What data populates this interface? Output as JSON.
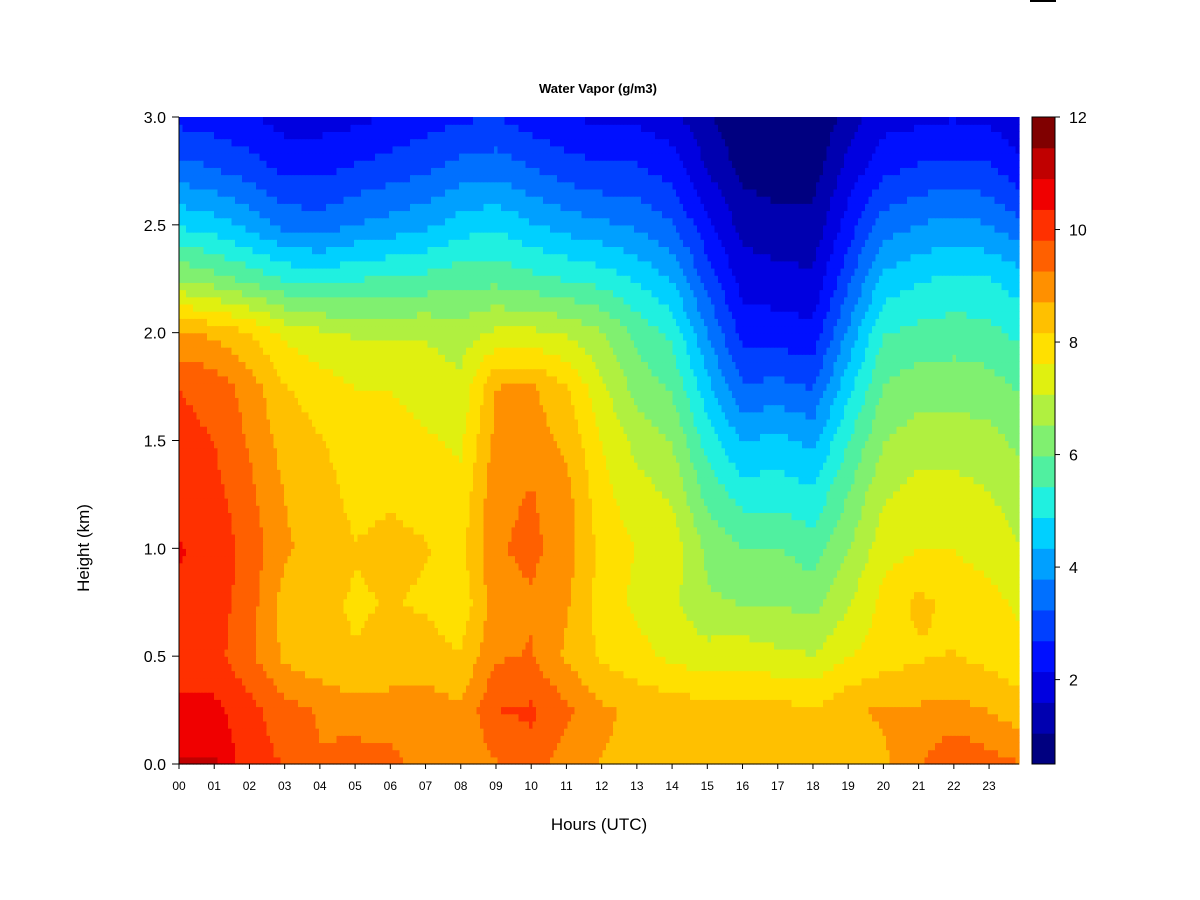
{
  "chart_data": {
    "type": "heatmap",
    "title": "Water Vapor (g/m3)",
    "xlabel": "Hours (UTC)",
    "ylabel": "Height (km)",
    "x_tick_labels": [
      "00",
      "01",
      "02",
      "03",
      "04",
      "05",
      "06",
      "07",
      "08",
      "09",
      "10",
      "11",
      "12",
      "13",
      "14",
      "15",
      "16",
      "17",
      "18",
      "19",
      "20",
      "21",
      "22",
      "23"
    ],
    "xlim": [
      0,
      23.85
    ],
    "y_ticks": [
      0.0,
      0.5,
      1.0,
      1.5,
      2.0,
      2.5,
      3.0
    ],
    "y_tick_labels": [
      "0.0",
      "0.5",
      "1.0",
      "1.5",
      "2.0",
      "2.5",
      "3.0"
    ],
    "ylim": [
      0,
      3
    ],
    "colorbar": {
      "min": 0.5,
      "max": 12,
      "ticks": [
        2,
        4,
        6,
        8,
        10,
        12
      ],
      "tick_labels": [
        "2",
        "4",
        "6",
        "8",
        "10",
        "12"
      ],
      "colors": [
        "#000080",
        "#0000B0",
        "#0000E0",
        "#0010FF",
        "#0040FF",
        "#0070FF",
        "#00A0FF",
        "#00D0FF",
        "#20F0E0",
        "#50F0A0",
        "#80F070",
        "#B0F040",
        "#E0F010",
        "#FFE000",
        "#FFC000",
        "#FF9000",
        "#FF6000",
        "#FF3000",
        "#F00000",
        "#C00000",
        "#800000"
      ]
    },
    "hours": [
      0,
      1,
      2,
      3,
      4,
      5,
      6,
      7,
      8,
      9,
      10,
      11,
      12,
      13,
      14,
      15,
      16,
      17,
      18,
      19,
      20,
      21,
      22,
      23,
      23.85
    ],
    "heights": [
      0.0,
      0.25,
      0.5,
      0.75,
      1.0,
      1.25,
      1.5,
      1.75,
      2.0,
      2.25,
      2.5,
      2.75,
      3.0
    ],
    "values": [
      [
        11.0,
        11.0,
        10.0,
        9.8,
        9.3,
        9.6,
        9.4,
        9.1,
        8.8,
        9.2,
        9.6,
        8.9,
        8.7,
        8.6,
        8.5,
        8.3,
        8.4,
        8.4,
        8.2,
        8.4,
        8.6,
        9.2,
        9.8,
        9.5,
        9.3
      ],
      [
        10.5,
        10.5,
        10.0,
        9.5,
        9.2,
        8.9,
        9.0,
        9.0,
        8.8,
        9.8,
        9.9,
        9.4,
        8.8,
        8.6,
        8.5,
        8.4,
        8.3,
        8.4,
        8.2,
        8.6,
        8.8,
        8.8,
        8.9,
        8.7,
        8.4
      ],
      [
        10.0,
        10.0,
        9.4,
        8.6,
        8.3,
        8.2,
        8.3,
        8.4,
        8.2,
        9.2,
        9.3,
        8.6,
        8.1,
        7.8,
        7.5,
        7.3,
        7.4,
        7.2,
        7.1,
        7.6,
        7.9,
        8.1,
        8.2,
        8.0,
        7.8
      ],
      [
        10.3,
        10.1,
        9.5,
        8.5,
        8.3,
        8.1,
        8.2,
        8.1,
        7.8,
        9.0,
        9.2,
        8.8,
        7.9,
        7.5,
        7.2,
        6.6,
        6.5,
        6.5,
        6.3,
        7.0,
        7.8,
        8.3,
        8.0,
        7.8,
        7.5
      ],
      [
        10.4,
        10.2,
        9.6,
        8.8,
        8.5,
        8.2,
        8.3,
        8.2,
        8.0,
        9.2,
        9.4,
        9.0,
        8.0,
        7.6,
        7.4,
        6.4,
        6.0,
        6.0,
        5.7,
        6.5,
        7.4,
        7.6,
        7.6,
        7.4,
        7.1
      ],
      [
        10.2,
        10.0,
        9.4,
        8.7,
        8.4,
        8.0,
        8.1,
        8.0,
        7.8,
        9.1,
        9.3,
        8.9,
        7.8,
        7.3,
        7.0,
        5.8,
        5.2,
        5.2,
        5.0,
        6.0,
        7.0,
        7.3,
        7.3,
        7.1,
        6.8
      ],
      [
        10.0,
        9.8,
        9.2,
        8.5,
        8.2,
        7.9,
        7.9,
        7.7,
        7.5,
        8.9,
        9.0,
        8.6,
        7.6,
        6.9,
        6.5,
        5.2,
        4.3,
        4.5,
        4.2,
        5.4,
        6.5,
        6.8,
        6.8,
        6.7,
        6.4
      ],
      [
        9.8,
        9.6,
        9.0,
        8.2,
        7.9,
        7.6,
        7.6,
        7.4,
        7.2,
        8.7,
        8.8,
        8.2,
        7.2,
        6.3,
        5.9,
        4.5,
        3.3,
        3.4,
        3.2,
        4.7,
        6.0,
        6.3,
        6.3,
        6.2,
        5.9
      ],
      [
        8.8,
        8.6,
        8.2,
        7.5,
        7.2,
        7.0,
        7.0,
        7.0,
        6.8,
        7.2,
        7.2,
        7.0,
        6.6,
        5.8,
        5.3,
        3.8,
        2.5,
        2.4,
        2.3,
        3.9,
        5.4,
        5.6,
        5.7,
        5.6,
        5.3
      ],
      [
        6.5,
        6.2,
        5.8,
        5.4,
        5.2,
        5.4,
        5.5,
        5.6,
        5.8,
        5.8,
        5.6,
        5.4,
        5.2,
        4.8,
        4.3,
        3.0,
        1.9,
        1.8,
        1.7,
        3.1,
        4.5,
        4.8,
        5.0,
        4.9,
        4.6
      ],
      [
        4.8,
        4.6,
        4.2,
        3.6,
        3.5,
        3.8,
        4.0,
        4.2,
        4.6,
        4.8,
        4.4,
        4.1,
        3.9,
        3.7,
        3.3,
        2.3,
        1.4,
        1.2,
        1.2,
        2.4,
        3.5,
        3.8,
        4.0,
        3.8,
        3.4
      ],
      [
        3.5,
        3.3,
        3.0,
        2.6,
        2.6,
        2.8,
        3.0,
        3.2,
        3.5,
        3.6,
        3.3,
        3.0,
        2.8,
        2.8,
        2.5,
        1.6,
        0.9,
        0.8,
        0.8,
        1.8,
        2.6,
        2.8,
        2.9,
        2.8,
        2.4
      ],
      [
        2.5,
        2.4,
        2.2,
        1.9,
        1.9,
        2.0,
        2.2,
        2.4,
        2.6,
        2.7,
        2.4,
        2.2,
        2.0,
        2.0,
        1.8,
        1.1,
        0.6,
        0.5,
        0.5,
        1.3,
        1.9,
        2.0,
        2.1,
        2.0,
        1.7
      ]
    ]
  }
}
